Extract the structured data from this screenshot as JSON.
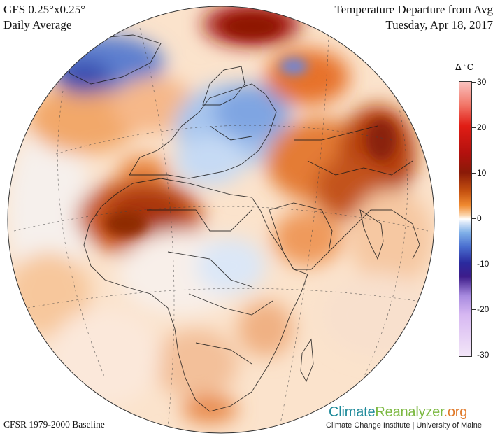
{
  "header_left": {
    "line1": "GFS 0.25°x0.25°",
    "line2": "Daily Average"
  },
  "header_right": {
    "title": "Temperature Departure from Avg",
    "date": "Tuesday, Apr 18, 2017"
  },
  "footer_left": "CFSR 1979-2000 Baseline",
  "legend": {
    "title": "Δ °C",
    "ticks": [
      "30",
      "20",
      "10",
      "0",
      "-10",
      "-20",
      "-30"
    ],
    "colors": [
      "#f9c2bf",
      "#e11d15",
      "#8a1a08",
      "#ffffff",
      "#2a2a9e",
      "#a88be0",
      "#f3e6f8"
    ]
  },
  "brand": {
    "name_part1": "Climate",
    "name_part2": "Reanalyzer",
    "name_part3": ".org",
    "subtitle": "Climate Change Institute | University of Maine"
  }
}
